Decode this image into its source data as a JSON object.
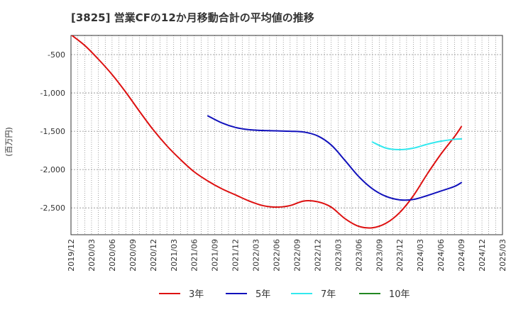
{
  "chart_data": {
    "type": "line",
    "title": "[3825]  営業CFの12か月移動合計の平均値の推移",
    "ylabel": "(百万円)",
    "xlabel": "",
    "ylim": [
      -2850,
      -250
    ],
    "yticks": [
      -500,
      -1000,
      -1500,
      -2000,
      -2500
    ],
    "ytick_labels": [
      "-500",
      "-1,000",
      "-1,500",
      "-2,000",
      "-2,500"
    ],
    "x_range": [
      "2019/12",
      "2025/03"
    ],
    "xtick_labels": [
      "2019/12",
      "2020/03",
      "2020/06",
      "2020/09",
      "2020/12",
      "2021/03",
      "2021/06",
      "2021/09",
      "2021/12",
      "2022/03",
      "2022/06",
      "2022/09",
      "2022/12",
      "2023/03",
      "2023/06",
      "2023/09",
      "2023/12",
      "2024/03",
      "2024/06",
      "2024/09",
      "2024/12",
      "2025/03"
    ],
    "grid": true,
    "legend_position": "bottom",
    "series": [
      {
        "name": "3年",
        "color": "#dd1111",
        "points": [
          [
            "2019/12",
            -240
          ],
          [
            "2020/02",
            -380
          ],
          [
            "2020/04",
            -560
          ],
          [
            "2020/06",
            -760
          ],
          [
            "2020/08",
            -990
          ],
          [
            "2020/10",
            -1240
          ],
          [
            "2020/12",
            -1480
          ],
          [
            "2021/02",
            -1690
          ],
          [
            "2021/04",
            -1870
          ],
          [
            "2021/06",
            -2030
          ],
          [
            "2021/08",
            -2150
          ],
          [
            "2021/10",
            -2250
          ],
          [
            "2021/12",
            -2330
          ],
          [
            "2022/02",
            -2410
          ],
          [
            "2022/04",
            -2470
          ],
          [
            "2022/06",
            -2490
          ],
          [
            "2022/08",
            -2470
          ],
          [
            "2022/10",
            -2410
          ],
          [
            "2022/12",
            -2420
          ],
          [
            "2023/02",
            -2490
          ],
          [
            "2023/04",
            -2640
          ],
          [
            "2023/06",
            -2740
          ],
          [
            "2023/08",
            -2760
          ],
          [
            "2023/10",
            -2700
          ],
          [
            "2023/12",
            -2560
          ],
          [
            "2024/02",
            -2340
          ],
          [
            "2024/04",
            -2060
          ],
          [
            "2024/06",
            -1800
          ],
          [
            "2024/08",
            -1570
          ],
          [
            "2024/09",
            -1440
          ]
        ]
      },
      {
        "name": "5年",
        "color": "#1111bb",
        "points": [
          [
            "2021/08",
            -1300
          ],
          [
            "2021/10",
            -1390
          ],
          [
            "2021/12",
            -1450
          ],
          [
            "2022/02",
            -1480
          ],
          [
            "2022/04",
            -1490
          ],
          [
            "2022/06",
            -1495
          ],
          [
            "2022/08",
            -1500
          ],
          [
            "2022/10",
            -1510
          ],
          [
            "2022/12",
            -1560
          ],
          [
            "2023/02",
            -1680
          ],
          [
            "2023/04",
            -1880
          ],
          [
            "2023/06",
            -2090
          ],
          [
            "2023/08",
            -2250
          ],
          [
            "2023/10",
            -2350
          ],
          [
            "2023/12",
            -2395
          ],
          [
            "2024/02",
            -2390
          ],
          [
            "2024/04",
            -2340
          ],
          [
            "2024/06",
            -2280
          ],
          [
            "2024/08",
            -2220
          ],
          [
            "2024/09",
            -2170
          ]
        ]
      },
      {
        "name": "7年",
        "color": "#33e8ee",
        "points": [
          [
            "2023/08",
            -1640
          ],
          [
            "2023/10",
            -1720
          ],
          [
            "2023/12",
            -1740
          ],
          [
            "2024/02",
            -1720
          ],
          [
            "2024/04",
            -1670
          ],
          [
            "2024/06",
            -1630
          ],
          [
            "2024/08",
            -1605
          ],
          [
            "2024/09",
            -1600
          ]
        ]
      },
      {
        "name": "10年",
        "color": "#228822",
        "points": []
      }
    ]
  }
}
